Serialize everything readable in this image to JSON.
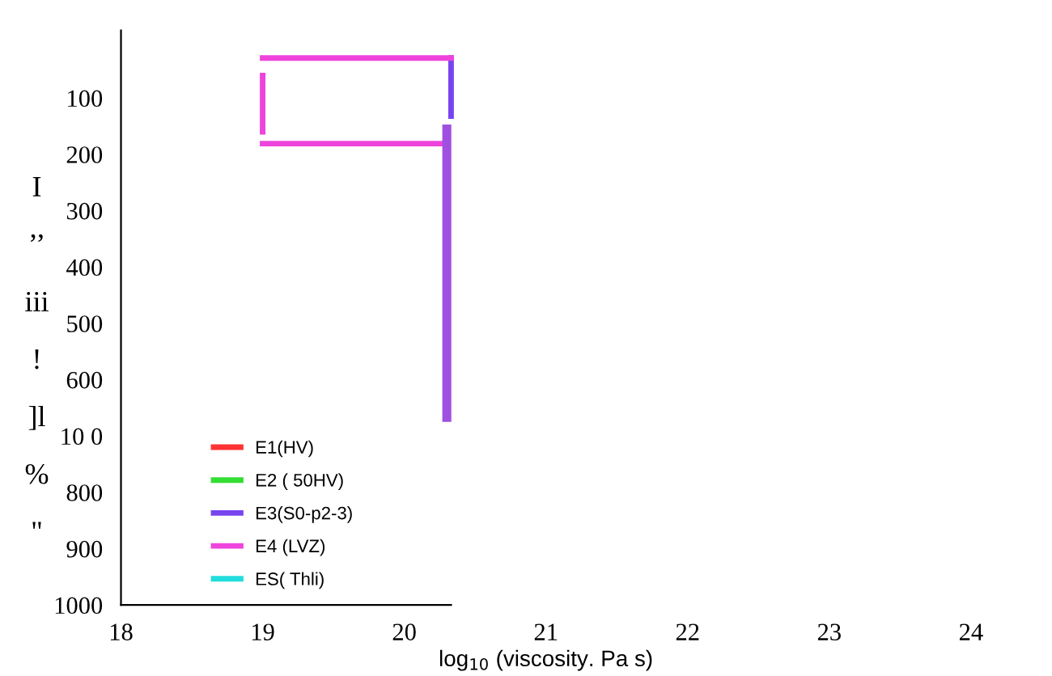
{
  "chart_data": {
    "type": "line",
    "xlabel": "log$_{10}$ (viscosity. Pa s)",
    "ylabel": "I ’’ iii ! ]l % \"",
    "xlim": [
      18,
      24
    ],
    "xticks": [
      18,
      19,
      20,
      21,
      22,
      23,
      24
    ],
    "ylim": [
      1000,
      -20
    ],
    "yticks": [
      100,
      200,
      300,
      400,
      500,
      600,
      {
        "value": 700,
        "label": "10 0"
      },
      800,
      900,
      1000
    ],
    "series": [
      {
        "name": "E1(HV)",
        "color": "#ff3333"
      },
      {
        "name": "E2 ( 50HV)",
        "color": "#33dd33"
      },
      {
        "name": "E3(S0-p2-3)",
        "color": "#7744ee",
        "x": [
          20.33,
          20.33
        ],
        "values": [
          29,
          132
        ]
      },
      {
        "name": "E4 (LVZ)",
        "color": "#ee44dd",
        "x": [
          20.33,
          19,
          null,
          19,
          19,
          null,
          19,
          20.3
        ],
        "values": [
          29,
          29,
          null,
          60,
          160,
          null,
          181,
          181
        ]
      },
      {
        "name": "ES( Thli)",
        "color": "#22dddd"
      },
      {
        "color": "#a050e0",
        "x": [
          20.3,
          20.3
        ],
        "values": [
          155,
          667
        ]
      }
    ],
    "legend": "bottom left",
    "grid": false
  }
}
